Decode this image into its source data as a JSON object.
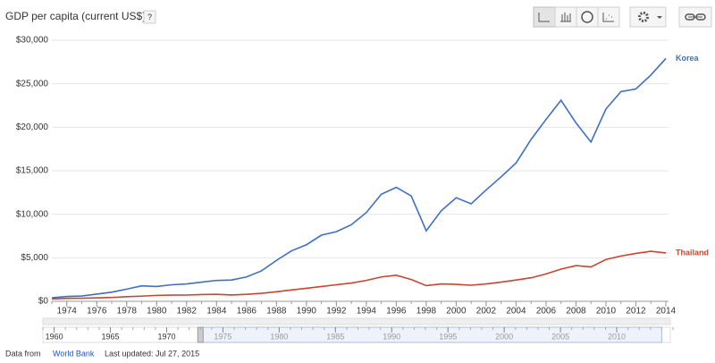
{
  "chart_data": {
    "type": "line",
    "title": "GDP per capita (current US$)",
    "help": "?",
    "x": [
      1973,
      1974,
      1975,
      1976,
      1977,
      1978,
      1979,
      1980,
      1981,
      1982,
      1983,
      1984,
      1985,
      1986,
      1987,
      1988,
      1989,
      1990,
      1991,
      1992,
      1993,
      1994,
      1995,
      1996,
      1997,
      1998,
      1999,
      2000,
      2001,
      2002,
      2003,
      2004,
      2005,
      2006,
      2007,
      2008,
      2009,
      2010,
      2011,
      2012,
      2013,
      2014
    ],
    "series": [
      {
        "name": "Korea",
        "color": "#3e6fc4",
        "values": [
          400,
          560,
          610,
          830,
          1050,
          1400,
          1780,
          1700,
          1900,
          2000,
          2200,
          2400,
          2450,
          2800,
          3500,
          4700,
          5800,
          6500,
          7600,
          8000,
          8800,
          10200,
          12300,
          13100,
          12100,
          8100,
          10400,
          11900,
          11200,
          12800,
          14300,
          15900,
          18600,
          20900,
          23100,
          20500,
          18300,
          22100,
          24100,
          24400,
          26000,
          27900
        ]
      },
      {
        "name": "Thailand",
        "color": "#c9452f",
        "values": [
          270,
          340,
          350,
          390,
          440,
          530,
          590,
          680,
          710,
          720,
          780,
          800,
          730,
          800,
          920,
          1100,
          1300,
          1500,
          1700,
          1900,
          2100,
          2400,
          2800,
          3000,
          2500,
          1800,
          2000,
          1950,
          1850,
          2000,
          2200,
          2450,
          2700,
          3150,
          3700,
          4100,
          3950,
          4800,
          5200,
          5500,
          5750,
          5550
        ]
      }
    ],
    "xlim": [
      1973,
      2014
    ],
    "xticks": [
      1974,
      1976,
      1978,
      1980,
      1982,
      1984,
      1986,
      1988,
      1990,
      1992,
      1994,
      1996,
      1998,
      2000,
      2002,
      2004,
      2006,
      2008,
      2010,
      2012,
      2014
    ],
    "ylim": [
      0,
      30000
    ],
    "yticks": [
      {
        "value": 0,
        "label": "$0"
      },
      {
        "value": 5000,
        "label": "$5,000"
      },
      {
        "value": 10000,
        "label": "$10,000"
      },
      {
        "value": 15000,
        "label": "$15,000"
      },
      {
        "value": 20000,
        "label": "$20,000"
      },
      {
        "value": 25000,
        "label": "$25,000"
      },
      {
        "value": 30000,
        "label": "$30,000"
      }
    ],
    "grid": true
  },
  "timeline": {
    "lim": [
      1959,
      2015
    ],
    "ticks": [
      1960,
      1965,
      1970,
      1975,
      1980,
      1985,
      1990,
      1995,
      2000,
      2005,
      2010
    ]
  },
  "footer": {
    "source_prefix": "Data from",
    "source": "World Bank",
    "updated": "Last updated: Jul 27, 2015"
  }
}
